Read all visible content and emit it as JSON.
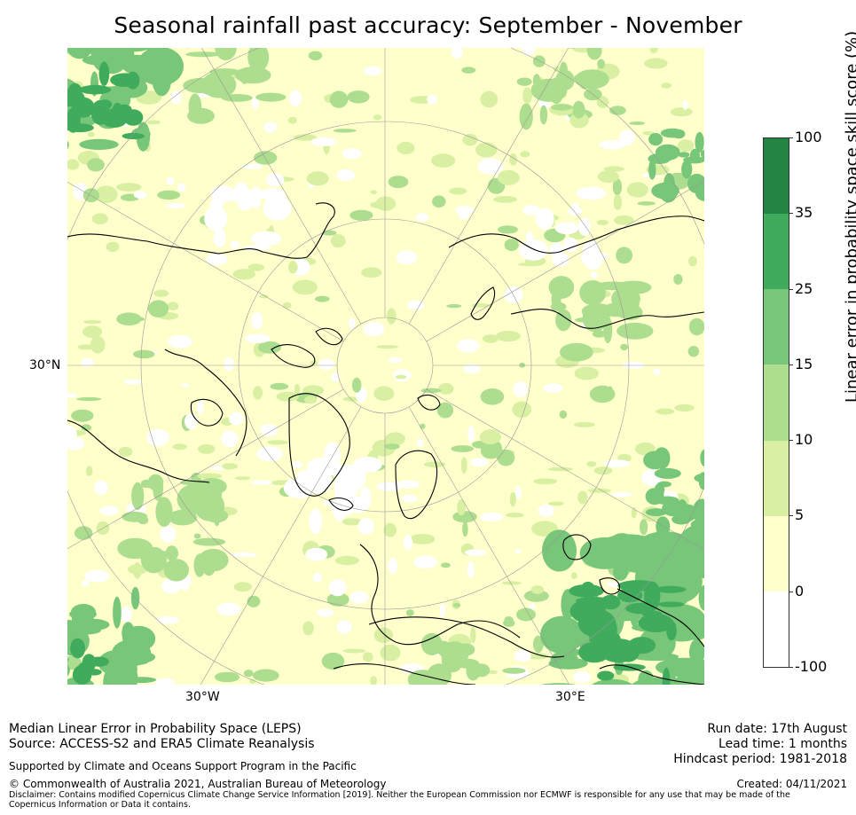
{
  "title": "Seasonal rainfall past accuracy: September - November",
  "map": {
    "lat_label": "30°N",
    "lon_labels": {
      "west": "30°W",
      "east": "30°E"
    },
    "colors": {
      "white": "#ffffff",
      "c0_5": "#ffffcc",
      "c5_10": "#d9f0a3",
      "c10_15": "#addd8e",
      "c15_25": "#78c679",
      "c25_35": "#41ab5d",
      "c35_100": "#238443",
      "coast": "#000000",
      "grid": "#999999"
    }
  },
  "colorbar": {
    "label": "Linear error in probability space skill score (%)",
    "ticks": [
      "100",
      "35",
      "25",
      "15",
      "10",
      "5",
      "0",
      "-100"
    ],
    "segments": [
      {
        "range": "35-100",
        "color": "#238443"
      },
      {
        "range": "25-35",
        "color": "#41ab5d"
      },
      {
        "range": "15-25",
        "color": "#78c679"
      },
      {
        "range": "10-15",
        "color": "#addd8e"
      },
      {
        "range": "5-10",
        "color": "#d9f0a3"
      },
      {
        "range": "0-5",
        "color": "#ffffcc"
      },
      {
        "range": "-100-0",
        "color": "#ffffff"
      }
    ]
  },
  "footer": {
    "method": "Median Linear Error in Probability Space (LEPS)",
    "source": "Source: ACCESS-S2 and ERA5 Climate Reanalysis",
    "support": "Supported by Climate and Oceans Support Program in the Pacific",
    "copyright": "© Commonwealth of Australia 2021, Australian Bureau of Meteorology",
    "disclaimer": "Disclaimer: Contains modified Copernicus Climate Change Service Information [2019]. Neither the European Commission nor ECMWF is responsible for any use that may be made of the Copernicus Information or Data it contains.",
    "run_date": "Run date: 17th August",
    "lead_time": "Lead time: 1 months",
    "hindcast": "Hindcast period: 1981-2018",
    "created": "Created: 04/11/2021"
  }
}
